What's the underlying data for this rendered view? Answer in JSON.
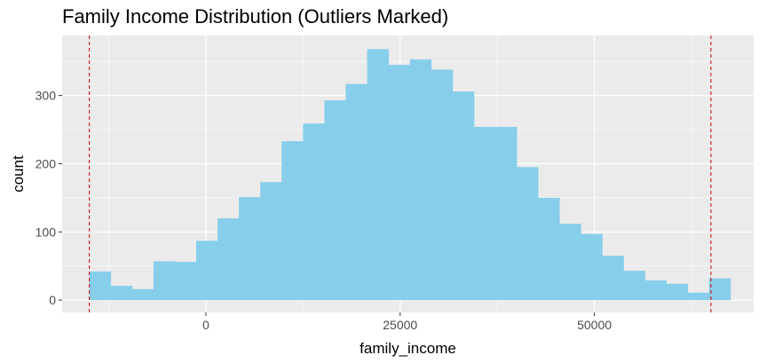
{
  "chart_data": {
    "type": "bar",
    "title": "Family Income Distribution (Outliers Marked)",
    "xlabel": "family_income",
    "ylabel": "count",
    "xlim": [
      -18500,
      70500
    ],
    "ylim": [
      -18,
      388
    ],
    "x_ticks": [
      0,
      25000,
      50000
    ],
    "x_tick_labels": [
      "0",
      "25000",
      "50000"
    ],
    "y_ticks": [
      0,
      100,
      200,
      300
    ],
    "y_tick_labels": [
      "0",
      "100",
      "200",
      "300"
    ],
    "grid": true,
    "bin_width": 2750,
    "bins": [
      {
        "x0": -15000,
        "x1": -12250,
        "count": 42
      },
      {
        "x0": -12250,
        "x1": -9500,
        "count": 21
      },
      {
        "x0": -9500,
        "x1": -6750,
        "count": 16
      },
      {
        "x0": -6750,
        "x1": -4000,
        "count": 57
      },
      {
        "x0": -4000,
        "x1": -1250,
        "count": 56
      },
      {
        "x0": -1250,
        "x1": 1500,
        "count": 87
      },
      {
        "x0": 1500,
        "x1": 4250,
        "count": 120
      },
      {
        "x0": 4250,
        "x1": 7000,
        "count": 151
      },
      {
        "x0": 7000,
        "x1": 9750,
        "count": 173
      },
      {
        "x0": 9750,
        "x1": 12500,
        "count": 233
      },
      {
        "x0": 12500,
        "x1": 15250,
        "count": 259
      },
      {
        "x0": 15250,
        "x1": 18000,
        "count": 293
      },
      {
        "x0": 18000,
        "x1": 20750,
        "count": 317
      },
      {
        "x0": 20750,
        "x1": 23500,
        "count": 368
      },
      {
        "x0": 23500,
        "x1": 26250,
        "count": 345
      },
      {
        "x0": 26250,
        "x1": 29000,
        "count": 353
      },
      {
        "x0": 29000,
        "x1": 31750,
        "count": 338
      },
      {
        "x0": 31750,
        "x1": 34500,
        "count": 306
      },
      {
        "x0": 34500,
        "x1": 37250,
        "count": 254
      },
      {
        "x0": 37250,
        "x1": 40000,
        "count": 254
      },
      {
        "x0": 40000,
        "x1": 42750,
        "count": 195
      },
      {
        "x0": 42750,
        "x1": 45500,
        "count": 150
      },
      {
        "x0": 45500,
        "x1": 48250,
        "count": 112
      },
      {
        "x0": 48250,
        "x1": 51000,
        "count": 97
      },
      {
        "x0": 51000,
        "x1": 53750,
        "count": 65
      },
      {
        "x0": 53750,
        "x1": 56500,
        "count": 43
      },
      {
        "x0": 56500,
        "x1": 59250,
        "count": 29
      },
      {
        "x0": 59250,
        "x1": 62000,
        "count": 24
      },
      {
        "x0": 62000,
        "x1": 64750,
        "count": 11
      },
      {
        "x0": 64750,
        "x1": 67500,
        "count": 32
      }
    ],
    "outlier_lines": [
      -15000,
      65000
    ],
    "colors": {
      "bar": "#87ceeb",
      "panel": "#ebebeb",
      "grid": "#ffffff",
      "outlier_line": "#cc0000",
      "tick_text": "#4d4d4d",
      "tick_mark": "#333333"
    }
  }
}
